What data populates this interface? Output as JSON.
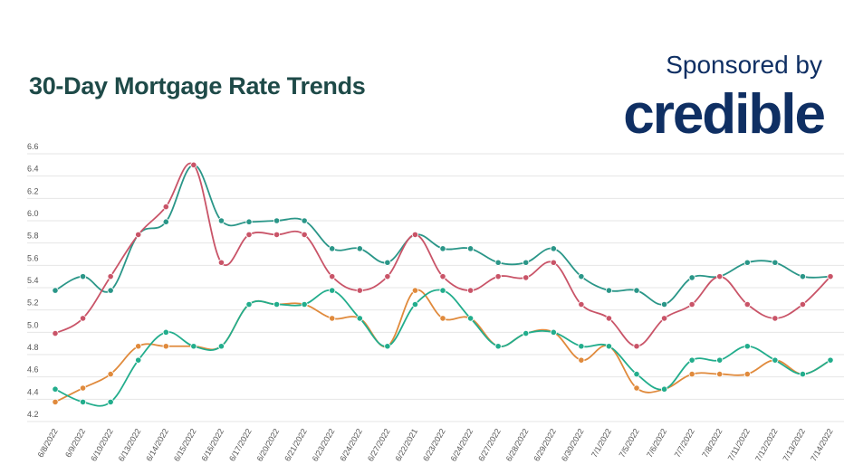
{
  "header": {
    "title": "30-Day Mortgage Rate Trends",
    "sponsor_label": "Sponsored by",
    "sponsor_logo": "credible"
  },
  "chart_data": {
    "type": "line",
    "title": "30-Day Mortgage Rate Trends",
    "xlabel": "",
    "ylabel": "",
    "ylim": [
      4.2,
      6.6
    ],
    "yticks": [
      "6.6",
      "6.4",
      "6.2",
      "6.0",
      "5.8",
      "5.6",
      "5.4",
      "5.2",
      "5.0",
      "4.8",
      "4.6",
      "4.4",
      "4.2"
    ],
    "grid": true,
    "legend": "none",
    "categories": [
      "6/8/2022",
      "6/9/2022",
      "6/10/2022",
      "6/13/2022",
      "6/14/2022",
      "6/15/2022",
      "6/16/2022",
      "6/17/2022",
      "6/20/2022",
      "6/21/2022",
      "6/23/2022",
      "6/24/2022",
      "6/27/2022",
      "6/22/2021",
      "6/23/2022",
      "6/24/2022",
      "6/27/2022",
      "6/28/2022",
      "6/29/2022",
      "6/30/2022",
      "7/1/2022",
      "7/5/2022",
      "7/6/2022",
      "7/7/2022",
      "7/8/2022",
      "7/11/2022",
      "7/12/2022",
      "7/13/2022",
      "7/14/2022"
    ],
    "series": [
      {
        "color": "#2a9688",
        "values": [
          5.375,
          5.5,
          5.375,
          5.875,
          5.99,
          6.5,
          6.0,
          5.99,
          6.0,
          6.0,
          5.75,
          5.75,
          5.625,
          5.875,
          5.75,
          5.75,
          5.625,
          5.625,
          5.75,
          5.5,
          5.375,
          5.375,
          5.25,
          5.49,
          5.5,
          5.625,
          5.625,
          5.5,
          5.5
        ]
      },
      {
        "color": "#c95468",
        "values": [
          4.99,
          5.125,
          5.5,
          5.875,
          6.125,
          6.5,
          5.625,
          5.875,
          5.875,
          5.875,
          5.5,
          5.375,
          5.5,
          5.875,
          5.5,
          5.375,
          5.5,
          5.49,
          5.625,
          5.25,
          5.125,
          4.875,
          5.125,
          5.25,
          5.5,
          5.25,
          5.125,
          5.25,
          5.5
        ]
      },
      {
        "color": "#e08a3c",
        "values": [
          4.375,
          4.5,
          4.625,
          4.875,
          4.875,
          4.875,
          4.875,
          5.25,
          5.25,
          5.25,
          5.125,
          5.125,
          4.875,
          5.375,
          5.125,
          5.125,
          4.875,
          4.99,
          5.0,
          4.75,
          4.875,
          4.5,
          4.49,
          4.625,
          4.625,
          4.625,
          4.75,
          4.625,
          4.75
        ]
      },
      {
        "color": "#22ad8c",
        "values": [
          4.49,
          4.375,
          4.375,
          4.75,
          5.0,
          4.875,
          4.875,
          5.25,
          5.25,
          5.25,
          5.375,
          5.125,
          4.875,
          5.25,
          5.375,
          5.125,
          4.875,
          4.99,
          5.0,
          4.875,
          4.875,
          4.625,
          4.49,
          4.75,
          4.75,
          4.875,
          4.75,
          4.625,
          4.75
        ]
      }
    ]
  }
}
